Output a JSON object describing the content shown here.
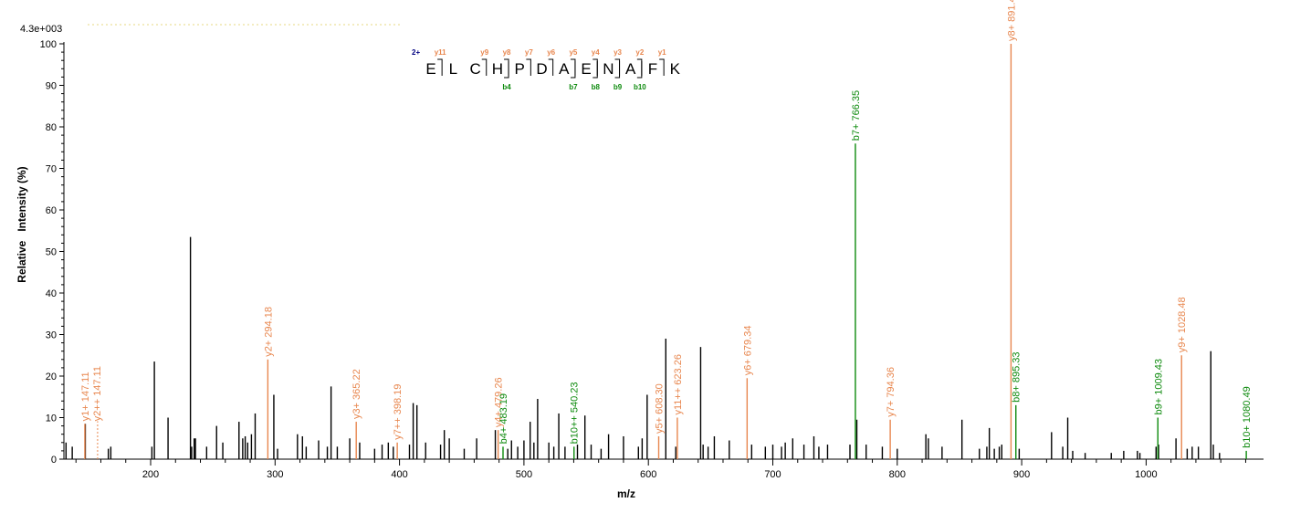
{
  "chart_data": {
    "type": "bar",
    "max_intensity_label": "4.3e+003",
    "xlabel": "m/z",
    "ylabel": "Relative   Intensity (%)",
    "xlim": [
      130,
      1100
    ],
    "ylim": [
      0,
      100
    ],
    "x_ticks": [
      200,
      300,
      400,
      500,
      600,
      700,
      800,
      900,
      1000
    ],
    "y_ticks": [
      0,
      10,
      20,
      30,
      40,
      50,
      60,
      70,
      80,
      90,
      100
    ],
    "colors": {
      "unassigned": "#000000",
      "y_ion": "#e8874f",
      "b_ion": "#0d8a0d",
      "charge": "#000080"
    },
    "sequence": {
      "charge_label": "2+",
      "residues": [
        "E",
        "L",
        "C",
        "H",
        "P",
        "D",
        "A",
        "E",
        "N",
        "A",
        "F",
        "K"
      ],
      "y_labels": [
        "y11",
        "y9",
        "y8",
        "y7",
        "y6",
        "y5",
        "y4",
        "y3",
        "y2",
        "y1"
      ],
      "y_after_index": [
        0,
        2,
        3,
        4,
        5,
        6,
        7,
        8,
        9,
        10
      ],
      "b_labels": [
        "b4",
        "b7",
        "b8",
        "b9",
        "b10"
      ],
      "b_after_index": [
        3,
        6,
        7,
        8,
        9
      ]
    },
    "annotated_peaks": [
      {
        "mz": 147.11,
        "intensity": 8.5,
        "type": "y",
        "label": "y1+ 147.11"
      },
      {
        "mz": 147.11,
        "intensity": 8.5,
        "type": "y",
        "label": "y2++ 147.11",
        "label_only": true
      },
      {
        "mz": 294.18,
        "intensity": 24,
        "type": "y",
        "label": "y2+ 294.18"
      },
      {
        "mz": 365.22,
        "intensity": 9,
        "type": "y",
        "label": "y3+ 365.22"
      },
      {
        "mz": 398.19,
        "intensity": 4,
        "type": "y",
        "label": "y7++ 398.19"
      },
      {
        "mz": 479.26,
        "intensity": 7,
        "type": "y",
        "label": "y4+ 479.26"
      },
      {
        "mz": 483.19,
        "intensity": 3,
        "type": "b",
        "label": "b4+ 483.19"
      },
      {
        "mz": 540.23,
        "intensity": 3,
        "type": "b",
        "label": "b10++ 540.23"
      },
      {
        "mz": 608.3,
        "intensity": 5.5,
        "type": "y",
        "label": "y5+ 608.30"
      },
      {
        "mz": 623.26,
        "intensity": 10,
        "type": "y",
        "label": "y11++ 623.26"
      },
      {
        "mz": 679.34,
        "intensity": 19.5,
        "type": "y",
        "label": "y6+ 679.34"
      },
      {
        "mz": 766.35,
        "intensity": 76,
        "type": "b",
        "label": "b7+ 766.35"
      },
      {
        "mz": 794.36,
        "intensity": 9.5,
        "type": "y",
        "label": "y7+ 794.36"
      },
      {
        "mz": 891.42,
        "intensity": 100,
        "type": "y",
        "label": "y8+ 891.42"
      },
      {
        "mz": 895.33,
        "intensity": 13,
        "type": "b",
        "label": "b8+ 895.33"
      },
      {
        "mz": 1009.43,
        "intensity": 10,
        "type": "b",
        "label": "b9+ 1009.43"
      },
      {
        "mz": 1028.48,
        "intensity": 25,
        "type": "y",
        "label": "y9+ 1028.48"
      },
      {
        "mz": 1080.49,
        "intensity": 2,
        "type": "b",
        "label": "b10+ 1080.49"
      }
    ],
    "unassigned_peaks": [
      [
        132,
        4
      ],
      [
        137,
        3
      ],
      [
        147.5,
        8.5
      ],
      [
        166,
        2.5
      ],
      [
        168,
        3
      ],
      [
        201,
        3
      ],
      [
        203,
        23.5
      ],
      [
        214,
        10
      ],
      [
        232,
        53.5
      ],
      [
        233,
        3
      ],
      [
        235,
        5
      ],
      [
        236,
        5
      ],
      [
        245,
        3
      ],
      [
        253,
        8
      ],
      [
        258,
        4
      ],
      [
        271,
        9
      ],
      [
        274,
        5
      ],
      [
        276,
        5.5
      ],
      [
        278,
        4
      ],
      [
        281,
        6
      ],
      [
        284,
        11
      ],
      [
        299,
        15.5
      ],
      [
        302,
        2.5
      ],
      [
        318,
        6
      ],
      [
        322,
        5.5
      ],
      [
        325,
        3
      ],
      [
        335,
        4.5
      ],
      [
        342,
        3
      ],
      [
        345,
        17.5
      ],
      [
        350,
        3
      ],
      [
        360,
        5
      ],
      [
        368,
        4
      ],
      [
        380,
        2.5
      ],
      [
        386,
        3.5
      ],
      [
        391,
        4
      ],
      [
        395,
        3
      ],
      [
        408,
        3.5
      ],
      [
        411,
        13.5
      ],
      [
        414,
        13
      ],
      [
        421,
        4
      ],
      [
        433,
        3.5
      ],
      [
        436,
        7
      ],
      [
        440,
        5
      ],
      [
        452,
        2.5
      ],
      [
        462,
        5
      ],
      [
        477,
        7
      ],
      [
        487,
        2.5
      ],
      [
        490,
        4.5
      ],
      [
        495,
        3
      ],
      [
        500,
        4.5
      ],
      [
        505,
        9
      ],
      [
        508,
        4
      ],
      [
        511,
        14.5
      ],
      [
        520,
        4
      ],
      [
        524,
        3
      ],
      [
        528,
        11
      ],
      [
        533,
        3
      ],
      [
        543,
        3.5
      ],
      [
        549,
        10.5
      ],
      [
        554,
        3.5
      ],
      [
        562,
        2.5
      ],
      [
        568,
        6
      ],
      [
        580,
        5.5
      ],
      [
        592,
        3
      ],
      [
        595,
        5
      ],
      [
        599,
        15.5
      ],
      [
        614,
        29
      ],
      [
        622,
        3
      ],
      [
        642,
        27
      ],
      [
        644,
        3.5
      ],
      [
        648,
        3
      ],
      [
        653,
        5.5
      ],
      [
        665,
        4.5
      ],
      [
        683,
        3.5
      ],
      [
        694,
        3
      ],
      [
        700,
        3.5
      ],
      [
        707,
        3
      ],
      [
        710,
        4
      ],
      [
        716,
        5
      ],
      [
        725,
        3.5
      ],
      [
        733,
        5.5
      ],
      [
        737,
        3
      ],
      [
        744,
        3.5
      ],
      [
        762,
        3.5
      ],
      [
        767.5,
        9.5
      ],
      [
        775,
        3.5
      ],
      [
        788,
        3
      ],
      [
        800,
        2.5
      ],
      [
        823,
        6
      ],
      [
        825,
        5
      ],
      [
        836,
        3
      ],
      [
        852,
        9.5
      ],
      [
        866,
        2.5
      ],
      [
        872,
        3
      ],
      [
        874,
        7.5
      ],
      [
        878,
        2.5
      ],
      [
        882,
        3
      ],
      [
        884,
        3.5
      ],
      [
        898,
        2.5
      ],
      [
        924,
        6.5
      ],
      [
        933,
        3
      ],
      [
        937,
        10
      ],
      [
        941,
        2
      ],
      [
        951,
        1.5
      ],
      [
        972,
        1.5
      ],
      [
        982,
        2
      ],
      [
        993,
        2
      ],
      [
        995,
        1.5
      ],
      [
        1008,
        3
      ],
      [
        1010,
        3.5
      ],
      [
        1024,
        5
      ],
      [
        1033,
        2.5
      ],
      [
        1037,
        3
      ],
      [
        1042,
        3
      ],
      [
        1052,
        26
      ],
      [
        1054,
        3.5
      ],
      [
        1059,
        1.5
      ]
    ]
  }
}
